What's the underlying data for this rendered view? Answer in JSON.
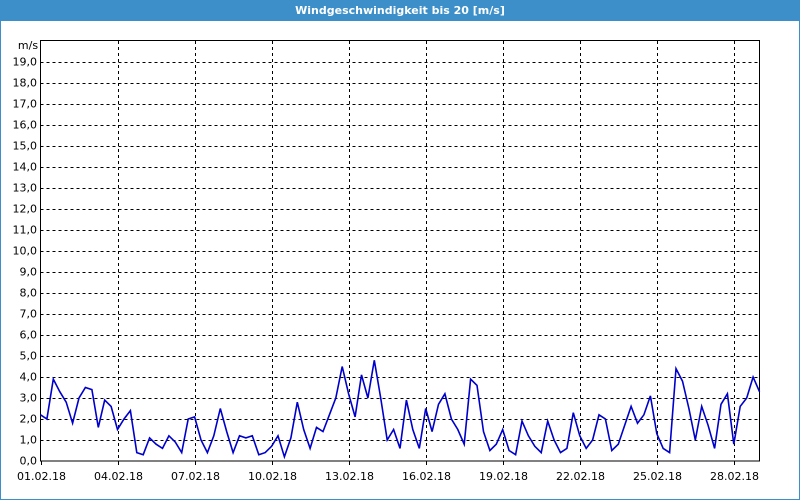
{
  "chart_data": {
    "type": "line",
    "title": "Windgeschwindigkeit bis 20 [m/s]",
    "y_label": "m/s",
    "x": [
      0,
      0.25,
      0.5,
      0.75,
      1,
      1.25,
      1.5,
      1.75,
      2,
      2.25,
      2.5,
      2.75,
      3,
      3.25,
      3.5,
      3.75,
      4,
      4.25,
      4.5,
      4.75,
      5,
      5.25,
      5.5,
      5.75,
      6,
      6.25,
      6.5,
      6.75,
      7,
      7.25,
      7.5,
      7.75,
      8,
      8.25,
      8.5,
      8.75,
      9,
      9.25,
      9.5,
      9.75,
      10,
      10.25,
      10.5,
      10.75,
      11,
      11.25,
      11.5,
      11.75,
      12,
      12.25,
      12.5,
      12.75,
      13,
      13.25,
      13.5,
      13.75,
      14,
      14.25,
      14.5,
      14.75,
      15,
      15.25,
      15.5,
      15.75,
      16,
      16.25,
      16.5,
      16.75,
      17,
      17.25,
      17.5,
      17.75,
      18,
      18.25,
      18.5,
      18.75,
      19,
      19.25,
      19.5,
      19.75,
      20,
      20.25,
      20.5,
      20.75,
      21,
      21.25,
      21.5,
      21.75,
      22,
      22.25,
      22.5,
      22.75,
      23,
      23.25,
      23.5,
      23.75,
      24,
      24.25,
      24.5,
      24.75,
      25,
      25.25,
      25.5,
      25.75,
      26,
      26.25,
      26.5,
      26.75,
      27,
      27.25,
      27.5,
      27.75,
      28
    ],
    "series": [
      {
        "name": "Windgeschwindigkeit",
        "color": "#0000cc",
        "values": [
          2.2,
          2.0,
          3.9,
          3.3,
          2.8,
          1.8,
          3.0,
          3.5,
          3.4,
          1.6,
          2.9,
          2.6,
          1.5,
          2.0,
          2.4,
          0.4,
          0.3,
          1.1,
          0.8,
          0.6,
          1.2,
          0.9,
          0.4,
          2.0,
          2.1,
          1.0,
          0.4,
          1.2,
          2.5,
          1.4,
          0.4,
          1.2,
          1.1,
          1.2,
          0.3,
          0.4,
          0.7,
          1.2,
          0.2,
          1.1,
          2.8,
          1.5,
          0.6,
          1.6,
          1.4,
          2.2,
          3.0,
          4.5,
          3.2,
          2.1,
          4.1,
          3.0,
          4.8,
          3.0,
          1.0,
          1.5,
          0.6,
          2.9,
          1.5,
          0.6,
          2.5,
          1.4,
          2.7,
          3.2,
          2.0,
          1.5,
          0.8,
          3.9,
          3.6,
          1.4,
          0.5,
          0.8,
          1.5,
          0.5,
          0.3,
          1.9,
          1.2,
          0.7,
          0.4,
          1.9,
          1.0,
          0.4,
          0.6,
          2.3,
          1.2,
          0.6,
          1.0,
          2.2,
          2.0,
          0.5,
          0.8,
          1.7,
          2.6,
          1.8,
          2.2,
          3.1,
          1.3,
          0.6,
          0.4,
          4.4,
          3.8,
          2.5,
          1.0,
          2.6,
          1.7,
          0.6,
          2.7,
          3.2,
          0.8,
          2.6,
          3.0,
          4.0,
          3.3
        ]
      }
    ],
    "xlim": [
      0,
      28
    ],
    "xticks": [
      {
        "value": 0,
        "label": "01.02.18"
      },
      {
        "value": 3,
        "label": "04.02.18"
      },
      {
        "value": 6,
        "label": "07.02.18"
      },
      {
        "value": 9,
        "label": "10.02.18"
      },
      {
        "value": 12,
        "label": "13.02.18"
      },
      {
        "value": 15,
        "label": "16.02.18"
      },
      {
        "value": 18,
        "label": "19.02.18"
      },
      {
        "value": 21,
        "label": "22.02.18"
      },
      {
        "value": 24,
        "label": "25.02.18"
      },
      {
        "value": 27,
        "label": "28.02.18"
      }
    ],
    "ylim": [
      0,
      20
    ],
    "yticks": [
      {
        "value": 0,
        "label": "0,0"
      },
      {
        "value": 1,
        "label": "1,0"
      },
      {
        "value": 2,
        "label": "2,0"
      },
      {
        "value": 3,
        "label": "3,0"
      },
      {
        "value": 4,
        "label": "4,0"
      },
      {
        "value": 5,
        "label": "5,0"
      },
      {
        "value": 6,
        "label": "6,0"
      },
      {
        "value": 7,
        "label": "7,0"
      },
      {
        "value": 8,
        "label": "8,0"
      },
      {
        "value": 9,
        "label": "9,0"
      },
      {
        "value": 10,
        "label": "10,0"
      },
      {
        "value": 11,
        "label": "11,0"
      },
      {
        "value": 12,
        "label": "12,0"
      },
      {
        "value": 13,
        "label": "13,0"
      },
      {
        "value": 14,
        "label": "14,0"
      },
      {
        "value": 15,
        "label": "15,0"
      },
      {
        "value": 16,
        "label": "16,0"
      },
      {
        "value": 17,
        "label": "17,0"
      },
      {
        "value": 18,
        "label": "18,0"
      },
      {
        "value": 19,
        "label": "19,0"
      }
    ],
    "grid": true
  }
}
